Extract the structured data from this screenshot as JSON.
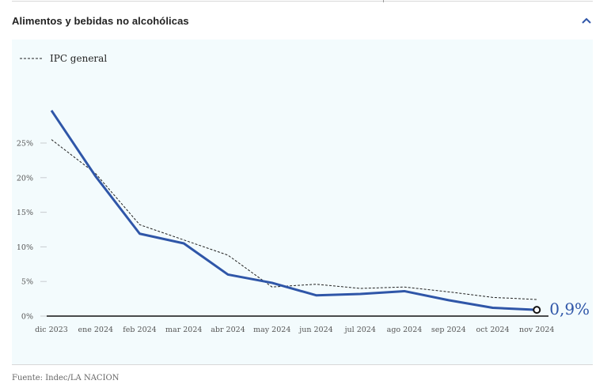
{
  "header": {
    "title": "Alimentos y bebidas no alcohólicas",
    "collapse_icon": "chevron-up-icon"
  },
  "colors": {
    "series": "#2f56a8",
    "reference": "#222222",
    "panel": "#f3fbfd",
    "grid": "#c8ccd0"
  },
  "chart_data": {
    "type": "line",
    "x": [
      "dic 2023",
      "ene 2024",
      "feb 2024",
      "mar 2024",
      "abr 2024",
      "may 2024",
      "jun 2024",
      "jul 2024",
      "ago 2024",
      "sep 2024",
      "oct 2024",
      "nov 2024"
    ],
    "y_ticks": [
      "0%",
      "5%",
      "10%",
      "15%",
      "20%",
      "25%"
    ],
    "ylim": [
      0,
      30
    ],
    "legend": {
      "label": "IPC general",
      "position": "top-left"
    },
    "series": [
      {
        "style": "solid",
        "values": [
          29.7,
          20.2,
          11.9,
          10.5,
          6.0,
          4.8,
          3.0,
          3.2,
          3.6,
          2.3,
          1.2,
          0.9
        ]
      },
      {
        "name": "IPC general",
        "style": "dashed",
        "values": [
          25.5,
          20.6,
          13.2,
          11.0,
          8.8,
          4.2,
          4.6,
          4.0,
          4.2,
          3.5,
          2.7,
          2.4
        ]
      }
    ],
    "end_label": "0,9%"
  },
  "source": "Fuente: Indec/LA NACION"
}
